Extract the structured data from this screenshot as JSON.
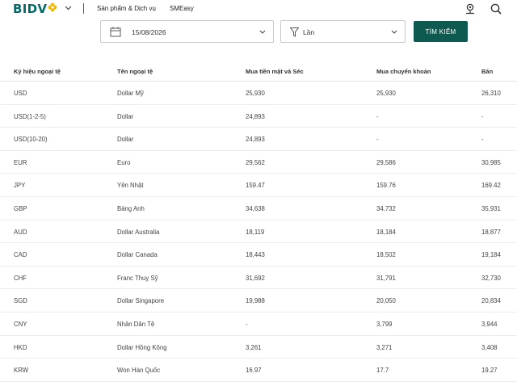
{
  "header": {
    "logo": "BIDV",
    "nav": [
      "Sản phẩm & Dịch vụ",
      "SMEasy"
    ],
    "icons": [
      "user-icon",
      "search-icon"
    ],
    "accent_color": "#006b68",
    "logo_flower_color": "#f2b700"
  },
  "filters": {
    "date_value": "15/08/2026",
    "filter_value": "Lần",
    "search_label": "TÌM KIẾM",
    "search_button_color": "#0e5a50"
  },
  "table": {
    "headers": [
      "Ký hiệu ngoại tệ",
      "Tên ngoại tệ",
      "Mua tiền mặt và Séc",
      "Mua chuyển khoản",
      "Bán"
    ],
    "rows": [
      [
        "USD",
        "Dollar Mỹ",
        "25,930",
        "25,930",
        "26,310"
      ],
      [
        "USD(1-2-5)",
        "Dollar",
        "24,893",
        "-",
        "-"
      ],
      [
        "USD(10-20)",
        "Dollar",
        "24,893",
        "-",
        "-"
      ],
      [
        "EUR",
        "Euro",
        "29,562",
        "29,586",
        "30,985"
      ],
      [
        "JPY",
        "Yên Nhật",
        "159.47",
        "159.76",
        "169.42"
      ],
      [
        "GBP",
        "Bảng Anh",
        "34,638",
        "34,732",
        "35,931"
      ],
      [
        "AUD",
        "Dollar Australia",
        "18,119",
        "18,184",
        "18,877"
      ],
      [
        "CAD",
        "Dollar Canada",
        "18,443",
        "18,502",
        "19,184"
      ],
      [
        "CHF",
        "Franc Thuỵ Sỹ",
        "31,692",
        "31,791",
        "32,730"
      ],
      [
        "SGD",
        "Dollar Singapore",
        "19,988",
        "20,050",
        "20,834"
      ],
      [
        "CNY",
        "Nhân Dân Tệ",
        "-",
        "3,799",
        "3,944"
      ],
      [
        "HKD",
        "Dollar Hồng Kông",
        "3,261",
        "3,271",
        "3,408"
      ],
      [
        "KRW",
        "Won Hàn Quốc",
        "16.97",
        "17.7",
        "19.27"
      ]
    ]
  }
}
